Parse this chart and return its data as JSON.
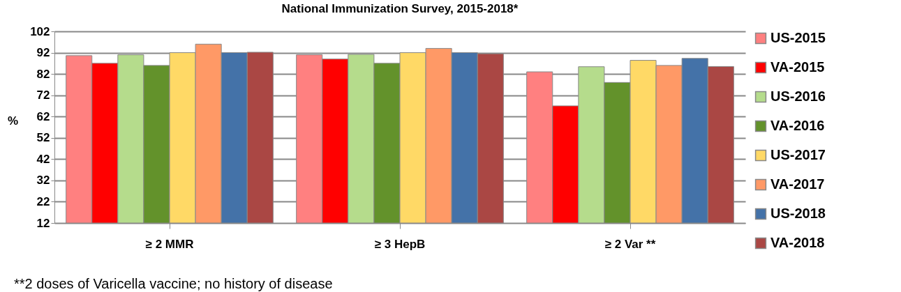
{
  "chart_data": {
    "type": "bar",
    "title": "National Immunization Survey, 2015-2018*",
    "ylabel": "%",
    "categories": [
      "≥ 2 MMR",
      "≥ 3 HepB",
      "≥ 2 Var **"
    ],
    "series": [
      {
        "name": "US-2015",
        "color": "#ff8080",
        "values": [
          90.6,
          91,
          83
        ]
      },
      {
        "name": "VA-2015",
        "color": "#ff0000",
        "values": [
          87,
          89,
          67
        ]
      },
      {
        "name": "US-2016",
        "color": "#b5dc8c",
        "values": [
          91,
          91.2,
          85.4
        ]
      },
      {
        "name": "VA-2016",
        "color": "#63922b",
        "values": [
          86,
          87,
          78
        ]
      },
      {
        "name": "US-2017",
        "color": "#ffd966",
        "values": [
          92,
          92,
          88.4
        ]
      },
      {
        "name": "VA-2017",
        "color": "#ff9966",
        "values": [
          96,
          94,
          86
        ]
      },
      {
        "name": "US-2018",
        "color": "#4472a8",
        "values": [
          92,
          92,
          89.3
        ]
      },
      {
        "name": "VA-2018",
        "color": "#aa4744",
        "values": [
          92.2,
          91.5,
          85.5
        ]
      }
    ],
    "ylim": [
      12,
      102
    ],
    "yticks": [
      12,
      22,
      32,
      42,
      52,
      62,
      72,
      82,
      92,
      102
    ],
    "grid": "y",
    "legend": "right",
    "annotations": [
      "**2 doses of Varicella vaccine; no history of disease"
    ]
  }
}
